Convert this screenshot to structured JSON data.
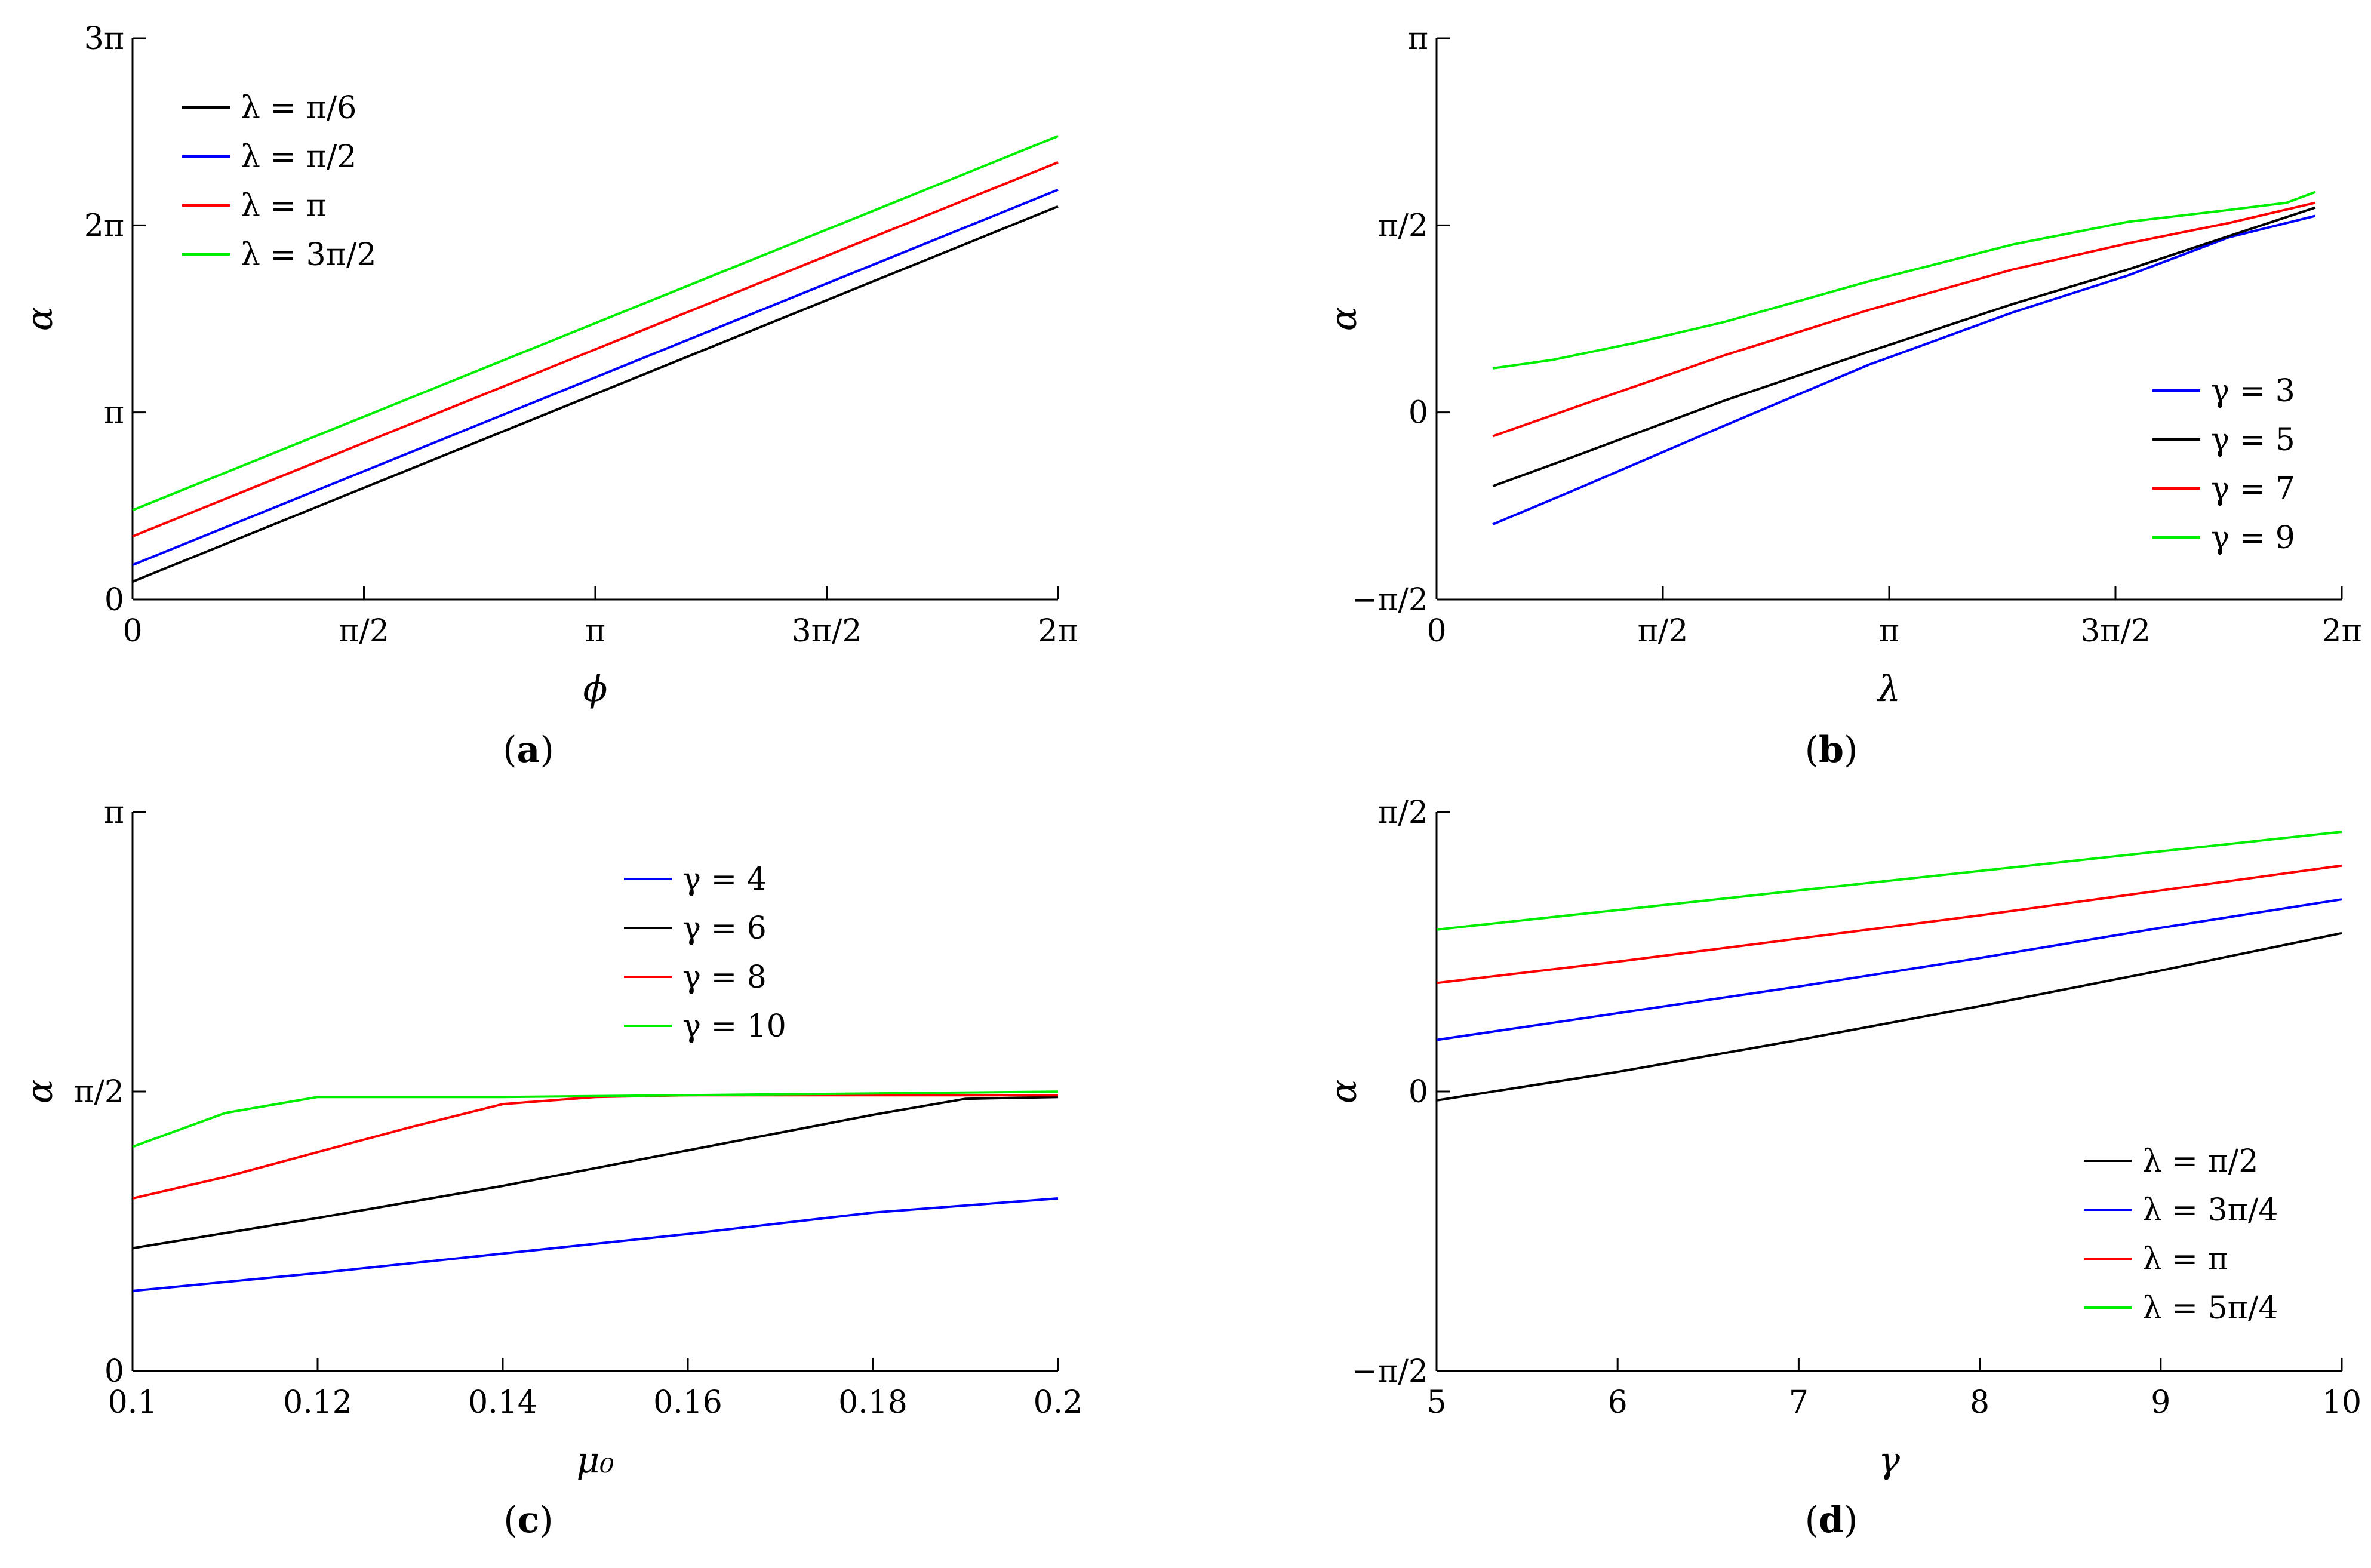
{
  "figure": {
    "panels": [
      "a",
      "b",
      "c",
      "d"
    ]
  },
  "chart_data": [
    {
      "id": "a",
      "type": "line",
      "caption_letter": "a",
      "xlabel": "ϕ",
      "ylabel": "α",
      "xlim": [
        0,
        6.283185
      ],
      "ylim": [
        0,
        9.424778
      ],
      "xticks": [
        0,
        1.570796,
        3.141593,
        4.712389,
        6.283185
      ],
      "xtick_labels": [
        "0",
        "π/2",
        "π",
        "3π/2",
        "2π"
      ],
      "yticks": [
        0,
        3.141593,
        6.283185,
        9.424778
      ],
      "ytick_labels": [
        "0",
        "π",
        "2π",
        "3π"
      ],
      "legend_position": "top-left",
      "series": [
        {
          "name": "λ = π/6",
          "color": "#000000",
          "x": [
            0,
            6.283185
          ],
          "y": [
            0.3,
            6.6
          ]
        },
        {
          "name": "λ = π/2",
          "color": "#0000ff",
          "x": [
            0,
            6.283185
          ],
          "y": [
            0.58,
            6.88
          ]
        },
        {
          "name": "λ = π",
          "color": "#ff0000",
          "x": [
            0,
            6.283185
          ],
          "y": [
            1.06,
            7.34
          ]
        },
        {
          "name": "λ = 3π/2",
          "color": "#00ee00",
          "x": [
            0,
            6.283185
          ],
          "y": [
            1.5,
            7.78
          ]
        }
      ]
    },
    {
      "id": "b",
      "type": "line",
      "caption_letter": "b",
      "xlabel": "λ",
      "ylabel": "α",
      "xlim": [
        0,
        6.283185
      ],
      "ylim": [
        -1.570796,
        3.141593
      ],
      "xticks": [
        0,
        1.570796,
        3.141593,
        4.712389,
        6.283185
      ],
      "xtick_labels": [
        "0",
        "π/2",
        "π",
        "3π/2",
        "2π"
      ],
      "yticks": [
        -1.570796,
        0,
        1.570796,
        3.141593
      ],
      "ytick_labels": [
        "−π/2",
        "0",
        "π/2",
        "π"
      ],
      "legend_position": "right",
      "series": [
        {
          "name": "γ = 3",
          "color": "#0000ff",
          "x": [
            0.39,
            1.0,
            2.0,
            3.0,
            4.0,
            4.8,
            5.5,
            6.1
          ],
          "y": [
            -0.94,
            -0.63,
            -0.11,
            0.4,
            0.84,
            1.15,
            1.47,
            1.65
          ]
        },
        {
          "name": "γ = 5",
          "color": "#000000",
          "x": [
            0.39,
            1.0,
            2.0,
            3.0,
            4.0,
            4.8,
            5.5,
            6.1
          ],
          "y": [
            -0.62,
            -0.35,
            0.1,
            0.51,
            0.91,
            1.2,
            1.48,
            1.72
          ]
        },
        {
          "name": "γ = 7",
          "color": "#ff0000",
          "x": [
            0.39,
            1.0,
            2.0,
            3.0,
            4.0,
            4.8,
            5.5,
            6.1
          ],
          "y": [
            -0.2,
            0.06,
            0.48,
            0.86,
            1.2,
            1.42,
            1.59,
            1.76
          ]
        },
        {
          "name": "γ = 9",
          "color": "#00ee00",
          "x": [
            0.39,
            0.8,
            1.4,
            2.0,
            3.0,
            4.0,
            4.8,
            5.5,
            5.9,
            6.1
          ],
          "y": [
            0.37,
            0.44,
            0.59,
            0.76,
            1.1,
            1.41,
            1.6,
            1.7,
            1.76,
            1.85
          ]
        }
      ]
    },
    {
      "id": "c",
      "type": "line",
      "caption_letter": "c",
      "xlabel": "μ₀",
      "ylabel": "α",
      "xlim": [
        0.1,
        0.2
      ],
      "ylim": [
        0,
        3.141593
      ],
      "xticks": [
        0.1,
        0.12,
        0.14,
        0.16,
        0.18,
        0.2
      ],
      "xtick_labels": [
        "0.1",
        "0.12",
        "0.14",
        "0.16",
        "0.18",
        "0.2"
      ],
      "yticks": [
        0,
        1.570796,
        3.141593
      ],
      "ytick_labels": [
        "0",
        "π/2",
        "π"
      ],
      "legend_position": "top-center",
      "series": [
        {
          "name": "γ = 4",
          "color": "#0000ff",
          "x": [
            0.1,
            0.12,
            0.14,
            0.16,
            0.18,
            0.2
          ],
          "y": [
            0.45,
            0.55,
            0.66,
            0.77,
            0.89,
            0.97
          ]
        },
        {
          "name": "γ = 6",
          "color": "#000000",
          "x": [
            0.1,
            0.12,
            0.14,
            0.16,
            0.18,
            0.19,
            0.2
          ],
          "y": [
            0.69,
            0.86,
            1.04,
            1.24,
            1.44,
            1.53,
            1.54
          ]
        },
        {
          "name": "γ = 8",
          "color": "#ff0000",
          "x": [
            0.1,
            0.11,
            0.12,
            0.13,
            0.14,
            0.15,
            0.16,
            0.18,
            0.2
          ],
          "y": [
            0.97,
            1.09,
            1.23,
            1.37,
            1.5,
            1.54,
            1.55,
            1.55,
            1.55
          ]
        },
        {
          "name": "γ = 10",
          "color": "#00ee00",
          "x": [
            0.1,
            0.11,
            0.12,
            0.14,
            0.16,
            0.18,
            0.2
          ],
          "y": [
            1.26,
            1.45,
            1.54,
            1.54,
            1.55,
            1.56,
            1.57
          ]
        }
      ]
    },
    {
      "id": "d",
      "type": "line",
      "caption_letter": "d",
      "xlabel": "γ",
      "ylabel": "α",
      "xlim": [
        5,
        10
      ],
      "ylim": [
        -1.570796,
        1.570796
      ],
      "xticks": [
        5,
        6,
        7,
        8,
        9,
        10
      ],
      "xtick_labels": [
        "5",
        "6",
        "7",
        "8",
        "9",
        "10"
      ],
      "yticks": [
        -1.570796,
        0,
        1.570796
      ],
      "ytick_labels": [
        "−π/2",
        "0",
        "π/2"
      ],
      "legend_position": "bottom-right",
      "series": [
        {
          "name": "λ = π/2",
          "color": "#000000",
          "x": [
            5,
            6,
            7,
            8,
            9,
            10
          ],
          "y": [
            -0.05,
            0.11,
            0.29,
            0.48,
            0.68,
            0.89
          ]
        },
        {
          "name": "λ = 3π/4",
          "color": "#0000ff",
          "x": [
            5,
            6,
            7,
            8,
            9,
            10
          ],
          "y": [
            0.29,
            0.44,
            0.59,
            0.75,
            0.92,
            1.08
          ]
        },
        {
          "name": "λ = π",
          "color": "#ff0000",
          "x": [
            5,
            6,
            7,
            8,
            9,
            10
          ],
          "y": [
            0.61,
            0.73,
            0.86,
            0.99,
            1.13,
            1.27
          ]
        },
        {
          "name": "λ = 5π/4",
          "color": "#00ee00",
          "x": [
            5,
            6,
            7,
            8,
            9,
            10
          ],
          "y": [
            0.91,
            1.02,
            1.13,
            1.24,
            1.35,
            1.46
          ]
        }
      ]
    }
  ]
}
